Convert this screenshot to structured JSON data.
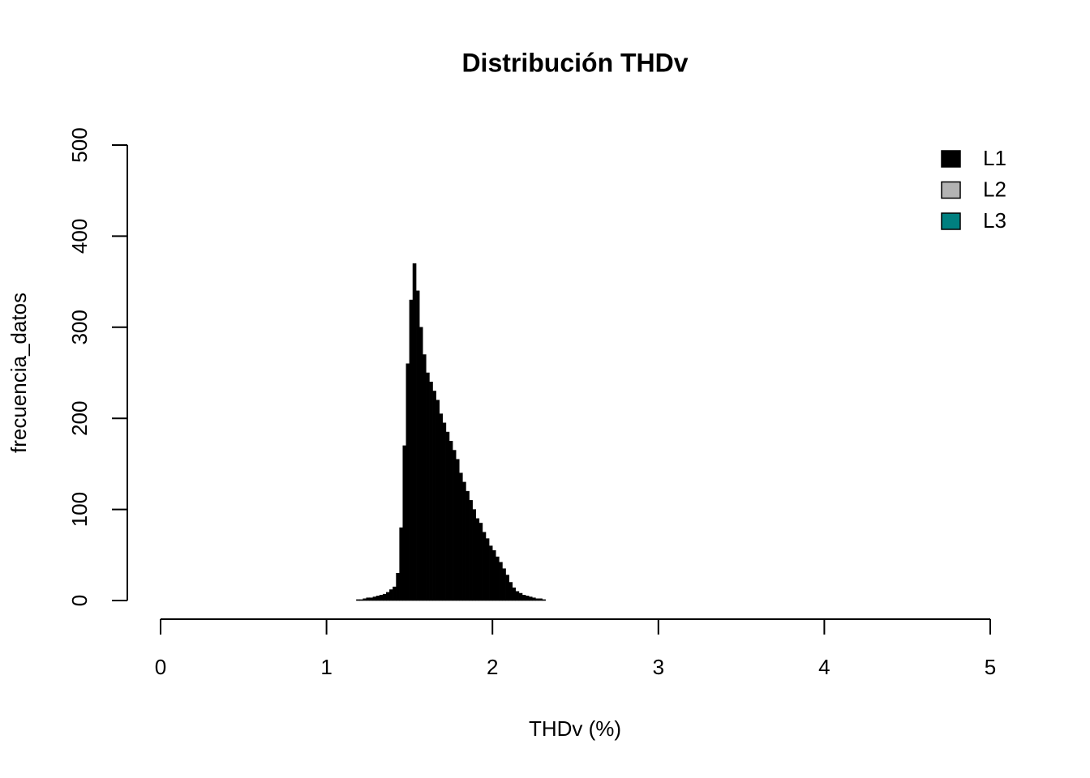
{
  "chart_data": {
    "type": "histogram",
    "title": "Distribución THDv",
    "xlabel": "THDv (%)",
    "ylabel": "frecuencia_datos",
    "bins": [
      1.18,
      1.2,
      1.22,
      1.24,
      1.26,
      1.28,
      1.3,
      1.32,
      1.34,
      1.36,
      1.38,
      1.4,
      1.42,
      1.44,
      1.46,
      1.48,
      1.5,
      1.52,
      1.54,
      1.56,
      1.58,
      1.6,
      1.62,
      1.64,
      1.66,
      1.68,
      1.7,
      1.72,
      1.74,
      1.76,
      1.78,
      1.8,
      1.82,
      1.84,
      1.86,
      1.88,
      1.9,
      1.92,
      1.94,
      1.96,
      1.98,
      2.0,
      2.02,
      2.04,
      2.06,
      2.08,
      2.1,
      2.12,
      2.14,
      2.16,
      2.18,
      2.2,
      2.22,
      2.24,
      2.26,
      2.28,
      2.3,
      2.32
    ],
    "values": [
      1,
      1,
      2,
      3,
      3,
      4,
      5,
      6,
      7,
      9,
      12,
      15,
      30,
      80,
      170,
      260,
      330,
      370,
      340,
      300,
      270,
      250,
      240,
      230,
      220,
      205,
      195,
      185,
      175,
      165,
      155,
      140,
      130,
      120,
      110,
      100,
      90,
      85,
      75,
      68,
      60,
      55,
      48,
      42,
      35,
      28,
      20,
      14,
      10,
      8,
      6,
      5,
      4,
      3,
      2,
      2,
      1
    ],
    "color": "#000000",
    "legend": [
      {
        "name": "L1",
        "color": "#000000"
      },
      {
        "name": "L2",
        "color": "#b3b3b3"
      },
      {
        "name": "L3",
        "color": "#008080"
      }
    ],
    "legend_position": "topright",
    "xlim": [
      0,
      5
    ],
    "xticks": [
      0,
      1,
      2,
      3,
      4,
      5
    ],
    "ylim": [
      0,
      500
    ],
    "yticks": [
      0,
      100,
      200,
      300,
      400,
      500
    ]
  }
}
